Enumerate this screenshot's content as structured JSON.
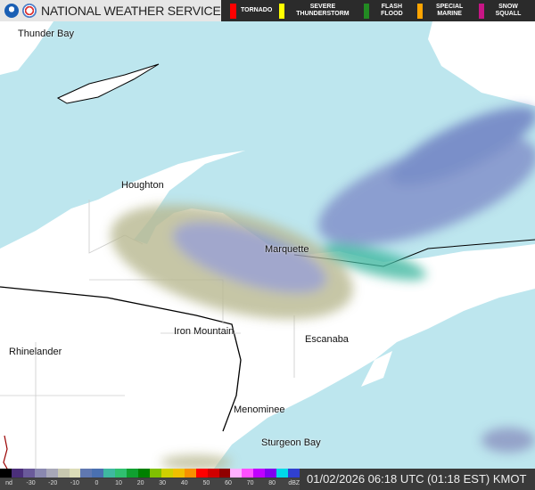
{
  "header": {
    "title": "NATIONAL WEATHER SERVICE",
    "logos": [
      "noaa-logo",
      "nws-logo"
    ]
  },
  "warnings": [
    {
      "label": "TORNADO",
      "color": "#ff0000"
    },
    {
      "label": "SEVERE THUNDERSTORM",
      "color": "#ffff00"
    },
    {
      "label": "FLASH FLOOD",
      "color": "#228b22"
    },
    {
      "label": "SPECIAL MARINE",
      "color": "#ffa500"
    },
    {
      "label": "SNOW SQUALL",
      "color": "#c71585"
    }
  ],
  "map": {
    "water_color": "#bde6ee",
    "land_color": "#ffffff",
    "cities": [
      "Thunder Bay",
      "Houghton",
      "Marquette",
      "Iron Mountain",
      "Escanaba",
      "Rhinelander",
      "Menominee",
      "Sturgeon Bay"
    ]
  },
  "footer": {
    "scale_labels": [
      "nd",
      "-30",
      "-20",
      "-10",
      "0",
      "10",
      "20",
      "30",
      "40",
      "50",
      "60",
      "70",
      "80",
      "dBZ"
    ],
    "timestamp": "01/02/2026 06:18 UTC (01:18 EST) KMOT"
  }
}
